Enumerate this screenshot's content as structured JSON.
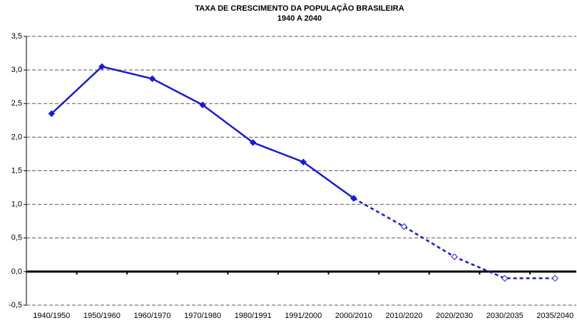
{
  "chart_data": {
    "type": "line",
    "title": "TAXA DE CRESCIMENTO DA POPULAÇÃO BRASILEIRA",
    "subtitle": "1940 A 2040",
    "categories": [
      "1940/1950",
      "1950/1960",
      "1960/1970",
      "1970/1980",
      "1980/1991",
      "1991/2000",
      "2000/2010",
      "2010/2020",
      "2020/2030",
      "2030/2035",
      "2035/2040"
    ],
    "series": [
      {
        "color": "#1a1ad6",
        "dashed": false,
        "hollow": false,
        "values": [
          2.35,
          3.05,
          2.87,
          2.48,
          1.92,
          1.63,
          1.09,
          null,
          null,
          null,
          null
        ]
      },
      {
        "color": "#1a1ad6",
        "dashed": true,
        "hollow": true,
        "values": [
          null,
          null,
          null,
          null,
          null,
          null,
          1.09,
          0.67,
          0.22,
          -0.1,
          -0.1
        ]
      }
    ],
    "ylim": [
      -0.5,
      3.5
    ],
    "yticks": [
      {
        "value": -0.5,
        "label": "-0,5"
      },
      {
        "value": 0,
        "label": "0,0"
      },
      {
        "value": 0.5,
        "label": "0,5"
      },
      {
        "value": 1,
        "label": "1,0"
      },
      {
        "value": 1.5,
        "label": "1,5"
      },
      {
        "value": 2,
        "label": "2,0"
      },
      {
        "value": 2.5,
        "label": "2,5"
      },
      {
        "value": 3,
        "label": "3,0"
      },
      {
        "value": 3.5,
        "label": "3,5"
      }
    ],
    "grid": true
  }
}
